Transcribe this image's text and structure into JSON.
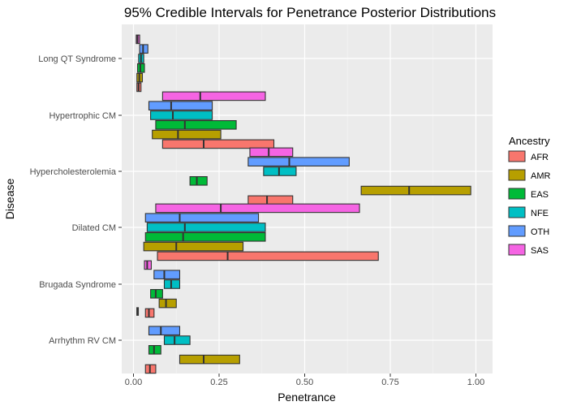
{
  "chart_data": {
    "type": "bar",
    "orientation": "horizontal-interval",
    "title": "95% Credible Intervals for Penetrance Posterior Distributions",
    "xlabel": "Penetrance",
    "ylabel": "Disease",
    "xlim": [
      -0.02,
      1.02
    ],
    "x_ticks": [
      0,
      0.25,
      0.5,
      0.75,
      1
    ],
    "x_tick_labels": [
      "0.00",
      "0.25",
      "0.50",
      "0.75",
      "1.00"
    ],
    "grid": true,
    "legend_position": "right",
    "legend_title": "Ancestry",
    "categories": [
      "Long QT Syndrome",
      "Hypertrophic CM",
      "Hypercholesterolemia",
      "Dilated CM",
      "Brugada Syndrome",
      "Arrhythm RV CM"
    ],
    "series": [
      {
        "name": "AFR",
        "color": "#F8766D",
        "intervals": [
          {
            "category": "Long QT Syndrome",
            "lo": 0.01,
            "median": 0.015,
            "hi": 0.022
          },
          {
            "category": "Hypertrophic CM",
            "lo": 0.085,
            "median": 0.205,
            "hi": 0.41
          },
          {
            "category": "Hypercholesterolemia",
            "lo": 0.335,
            "median": 0.39,
            "hi": 0.465
          },
          {
            "category": "Dilated CM",
            "lo": 0.07,
            "median": 0.275,
            "hi": 0.715
          },
          {
            "category": "Brugada Syndrome",
            "lo": 0.035,
            "median": 0.045,
            "hi": 0.06
          },
          {
            "category": "Arrhythm RV CM",
            "lo": 0.035,
            "median": 0.048,
            "hi": 0.065
          }
        ]
      },
      {
        "name": "AMR",
        "color": "#B79F00",
        "intervals": [
          {
            "category": "Long QT Syndrome",
            "lo": 0.01,
            "median": 0.017,
            "hi": 0.026
          },
          {
            "category": "Hypertrophic CM",
            "lo": 0.055,
            "median": 0.13,
            "hi": 0.255
          },
          {
            "category": "Hypercholesterolemia",
            "lo": 0.665,
            "median": 0.805,
            "hi": 0.985
          },
          {
            "category": "Dilated CM",
            "lo": 0.03,
            "median": 0.125,
            "hi": 0.32
          },
          {
            "category": "Brugada Syndrome",
            "lo": 0.075,
            "median": 0.095,
            "hi": 0.125
          },
          {
            "category": "Arrhythm RV CM",
            "lo": 0.135,
            "median": 0.205,
            "hi": 0.31
          }
        ]
      },
      {
        "name": "EAS",
        "color": "#00BA38",
        "intervals": [
          {
            "category": "Long QT Syndrome",
            "lo": 0.012,
            "median": 0.02,
            "hi": 0.032
          },
          {
            "category": "Hypertrophic CM",
            "lo": 0.065,
            "median": 0.15,
            "hi": 0.3
          },
          {
            "category": "Hypercholesterolemia",
            "lo": 0.165,
            "median": 0.185,
            "hi": 0.215
          },
          {
            "category": "Dilated CM",
            "lo": 0.035,
            "median": 0.145,
            "hi": 0.385
          },
          {
            "category": "Brugada Syndrome",
            "lo": 0.05,
            "median": 0.065,
            "hi": 0.085
          },
          {
            "category": "Arrhythm RV CM",
            "lo": 0.045,
            "median": 0.06,
            "hi": 0.08
          }
        ]
      },
      {
        "name": "NFE",
        "color": "#00BFC4",
        "intervals": [
          {
            "category": "Long QT Syndrome",
            "lo": 0.015,
            "median": 0.022,
            "hi": 0.03
          },
          {
            "category": "Hypertrophic CM",
            "lo": 0.05,
            "median": 0.115,
            "hi": 0.23
          },
          {
            "category": "Hypercholesterolemia",
            "lo": 0.38,
            "median": 0.425,
            "hi": 0.475
          },
          {
            "category": "Dilated CM",
            "lo": 0.04,
            "median": 0.15,
            "hi": 0.385
          },
          {
            "category": "Brugada Syndrome",
            "lo": 0.09,
            "median": 0.11,
            "hi": 0.135
          },
          {
            "category": "Arrhythm RV CM",
            "lo": 0.09,
            "median": 0.12,
            "hi": 0.165
          }
        ]
      },
      {
        "name": "OTH",
        "color": "#619CFF",
        "intervals": [
          {
            "category": "Long QT Syndrome",
            "lo": 0.018,
            "median": 0.028,
            "hi": 0.042
          },
          {
            "category": "Hypertrophic CM",
            "lo": 0.045,
            "median": 0.11,
            "hi": 0.23
          },
          {
            "category": "Hypercholesterolemia",
            "lo": 0.335,
            "median": 0.455,
            "hi": 0.63
          },
          {
            "category": "Dilated CM",
            "lo": 0.035,
            "median": 0.135,
            "hi": 0.365
          },
          {
            "category": "Brugada Syndrome",
            "lo": 0.06,
            "median": 0.09,
            "hi": 0.135
          },
          {
            "category": "Arrhythm RV CM",
            "lo": 0.045,
            "median": 0.08,
            "hi": 0.135
          }
        ]
      },
      {
        "name": "SAS",
        "color": "#F564E3",
        "intervals": [
          {
            "category": "Long QT Syndrome",
            "lo": 0.008,
            "median": 0.012,
            "hi": 0.018
          },
          {
            "category": "Hypertrophic CM",
            "lo": 0.085,
            "median": 0.195,
            "hi": 0.385
          },
          {
            "category": "Hypercholesterolemia",
            "lo": 0.34,
            "median": 0.395,
            "hi": 0.465
          },
          {
            "category": "Dilated CM",
            "lo": 0.065,
            "median": 0.255,
            "hi": 0.66
          },
          {
            "category": "Brugada Syndrome",
            "lo": 0.032,
            "median": 0.04,
            "hi": 0.052
          },
          {
            "category": "Arrhythm RV CM",
            "lo": null,
            "median": null,
            "hi": null
          }
        ]
      }
    ],
    "extra_marks": [
      {
        "category": "Arrhythm RV CM",
        "series_slot": 6,
        "value": 0.012,
        "color": "#333333"
      }
    ]
  }
}
